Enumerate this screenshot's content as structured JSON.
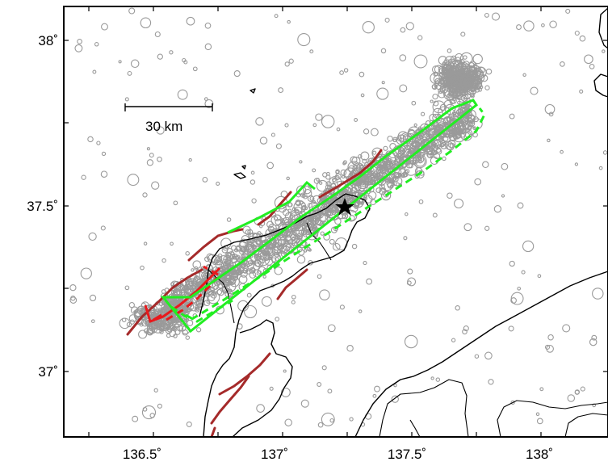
{
  "map": {
    "x_ticks": [
      "136.5˚",
      "137˚",
      "137.5˚",
      "138˚"
    ],
    "y_ticks": [
      "38˚",
      "37.5˚",
      "37˚"
    ],
    "scale_bar_label": "30 km",
    "colors": {
      "frame": "#000000",
      "earthquakes": "#9a9a9a",
      "coastline": "#000000",
      "fault_dark_red": "#a52a2a",
      "fault_red": "#e8191c",
      "fault_green": "#22ee22",
      "epicenter": "#000000"
    },
    "epicenter_symbol": "star-icon"
  }
}
